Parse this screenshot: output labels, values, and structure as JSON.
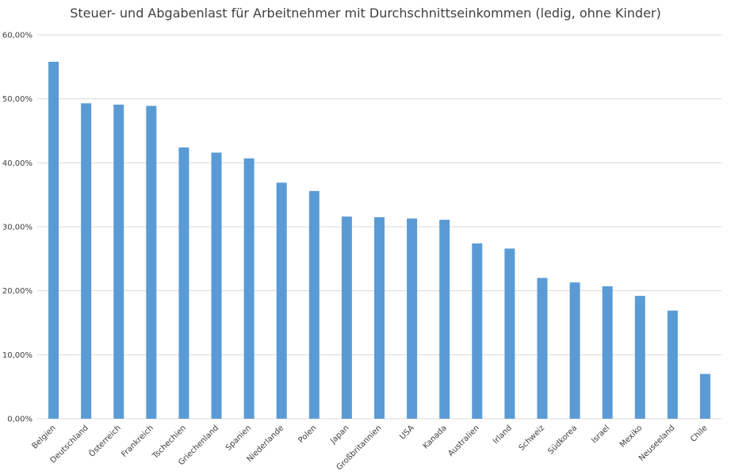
{
  "chart_data": {
    "type": "bar",
    "title": "Steuer- und Abgabenlast für Arbeitnehmer mit Durchschnittseinkommen (ledig, ohne Kinder)",
    "xlabel": "",
    "ylabel": "",
    "categories": [
      "Belgien",
      "Deutschland",
      "Österreich",
      "Frankreich",
      "Tschechien",
      "Griechenland",
      "Spanien",
      "Niederlande",
      "Polen",
      "Japan",
      "Großbritannien",
      "USA",
      "Kanada",
      "Australien",
      "Irland",
      "Schweiz",
      "Südkorea",
      "Israel",
      "Mexiko",
      "Neuseeland",
      "Chile"
    ],
    "values": [
      55.8,
      49.3,
      49.1,
      48.9,
      42.4,
      41.6,
      40.7,
      36.9,
      35.6,
      31.6,
      31.5,
      31.3,
      31.1,
      27.4,
      26.6,
      22.0,
      21.3,
      20.7,
      19.2,
      16.9,
      7.0
    ],
    "ylim": [
      0,
      60
    ],
    "yticks": [
      "0,00%",
      "10,00%",
      "20,00%",
      "30,00%",
      "40,00%",
      "50,00%",
      "60,00%"
    ],
    "grid": true,
    "bar_color": "#5b9bd5",
    "grid_color": "#d9d9d9"
  }
}
